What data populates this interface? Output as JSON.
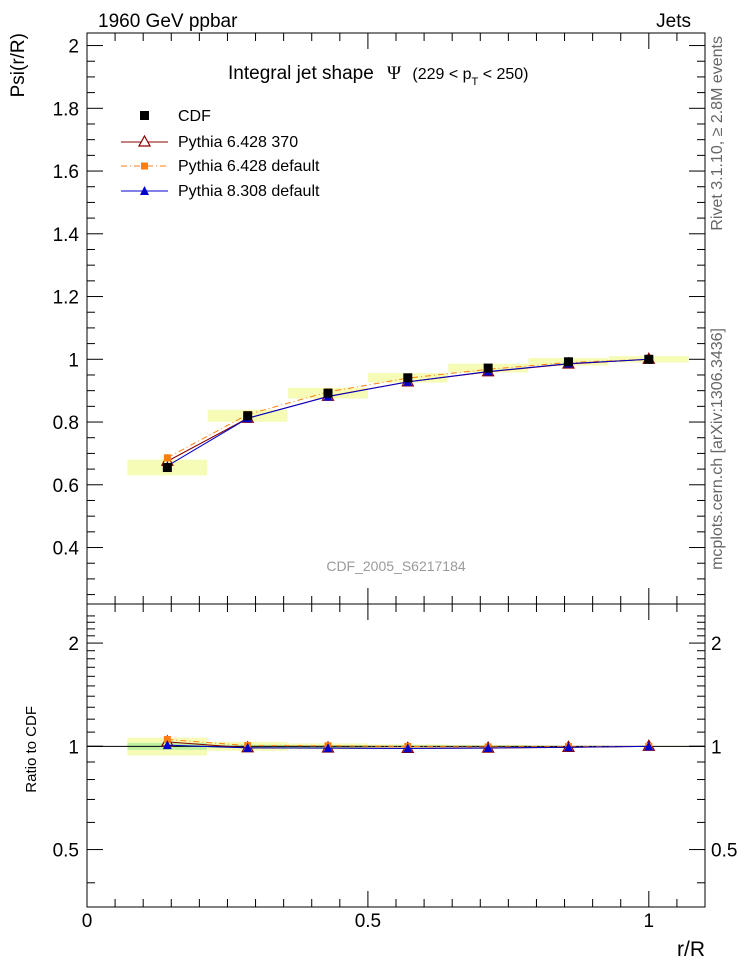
{
  "header": {
    "left": "1960 GeV ppbar",
    "right": "Jets"
  },
  "side_labels": {
    "top": "Rivet 3.1.10, ≥ 2.8M events",
    "bottom": "mcplots.cern.ch [arXiv:1306.3436]"
  },
  "analysis_tag": "CDF_2005_S6217184",
  "chart_data": [
    {
      "type": "line",
      "title_main": "Integral jet shape",
      "title_symbol": "Ψ",
      "title_range_start": "(229 < p",
      "title_range_sub": "T",
      "title_range_end": " < 250)",
      "ylabel": "Psi(r/R)",
      "xlabel": "r/R",
      "xlim": [
        0,
        1.1
      ],
      "ylim": [
        0.22,
        2.04
      ],
      "yticks": [
        0.4,
        0.6,
        0.8,
        1,
        1.2,
        1.4,
        1.6,
        1.8,
        2
      ],
      "ytick_labels": [
        "0.4",
        "0.6",
        "0.8",
        "1",
        "1.2",
        "1.4",
        "1.6",
        "1.8",
        "2"
      ],
      "legend_position": "top-left",
      "x": [
        0.143,
        0.286,
        0.429,
        0.571,
        0.714,
        0.857,
        1.0
      ],
      "data": {
        "name": "CDF",
        "color": "#000000",
        "y": [
          0.655,
          0.82,
          0.892,
          0.941,
          0.972,
          0.992,
          1.0
        ],
        "yerr": [
          0.015,
          0.009,
          0.007,
          0.005,
          0.004,
          0.002,
          0.0
        ],
        "band_half_width": 0.071
      },
      "series": [
        {
          "name": "Pythia 6.428 370",
          "color": "#8b0000",
          "marker": "open-triangle",
          "dash": "",
          "y": [
            0.675,
            0.812,
            0.882,
            0.928,
            0.96,
            0.985,
            1.0
          ]
        },
        {
          "name": "Pythia 6.428 default",
          "color": "#ff7f0e",
          "marker": "square",
          "dash": "6,3,1,3",
          "y": [
            0.686,
            0.824,
            0.896,
            0.94,
            0.968,
            0.99,
            1.0
          ]
        },
        {
          "name": "Pythia 8.308 default",
          "color": "#0000cc",
          "marker": "triangle",
          "dash": "",
          "y": [
            0.66,
            0.812,
            0.881,
            0.928,
            0.961,
            0.986,
            1.0
          ]
        }
      ]
    },
    {
      "type": "line",
      "ylabel": "Ratio to CDF",
      "xlabel": "r/R",
      "xlim": [
        0,
        1.1
      ],
      "log_y": true,
      "ylim": [
        0.34,
        2.6
      ],
      "yticks": [
        0.5,
        1,
        2
      ],
      "ytick_labels": [
        "0.5",
        "1",
        "2"
      ],
      "xticks": [
        0,
        0.5,
        1
      ],
      "xtick_labels": [
        "0",
        "0.5",
        "1"
      ],
      "x": [
        0.143,
        0.286,
        0.429,
        0.571,
        0.714,
        0.857,
        1.0
      ],
      "stat_band": [
        0.023,
        0.011,
        0.008,
        0.005,
        0.004,
        0.002,
        0.001
      ],
      "total_band": [
        0.06,
        0.03,
        0.02,
        0.013,
        0.01,
        0.006,
        0.003
      ],
      "series": [
        {
          "name": "Pythia 6.428 370",
          "color": "#8b0000",
          "marker": "open-triangle",
          "dash": "",
          "y": [
            1.03,
            0.99,
            0.989,
            0.986,
            0.988,
            0.993,
            1.0
          ]
        },
        {
          "name": "Pythia 6.428 default",
          "color": "#ff7f0e",
          "marker": "square",
          "dash": "6,3,1,3",
          "y": [
            1.047,
            1.005,
            1.004,
            0.999,
            0.996,
            0.998,
            1.0
          ]
        },
        {
          "name": "Pythia 8.308 default",
          "color": "#0000cc",
          "marker": "triangle",
          "dash": "",
          "y": [
            1.008,
            0.99,
            0.988,
            0.986,
            0.989,
            0.994,
            1.0
          ]
        }
      ]
    }
  ]
}
